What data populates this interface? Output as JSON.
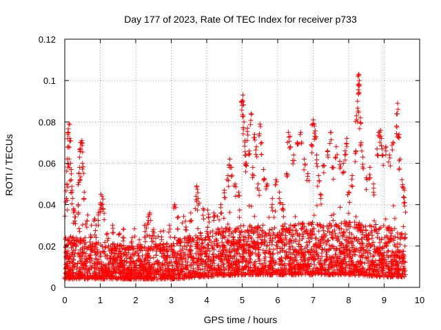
{
  "chart_data": {
    "type": "scatter",
    "title": "Day 177 of 2023, Rate Of TEC Index for receiver p733",
    "xlabel": "GPS time / hours",
    "ylabel": "ROTI / TECUs",
    "xlim": [
      0,
      10
    ],
    "ylim": [
      0,
      0.12
    ],
    "grid": true,
    "marker": "+",
    "x_ticks": [
      0,
      1,
      2,
      3,
      4,
      5,
      6,
      7,
      8,
      9,
      10
    ],
    "y_ticks": [
      0,
      0.02,
      0.04,
      0.06,
      0.08,
      0.1,
      0.12
    ],
    "x_tick_labels": [
      "0",
      "1",
      "2",
      "3",
      "4",
      "5",
      "6",
      "7",
      "8",
      "9",
      "10"
    ],
    "y_tick_labels": [
      "0",
      "0.02",
      "0.04",
      "0.06",
      "0.08",
      "0.1",
      "0.12"
    ],
    "series": [
      {
        "name": "ROTI",
        "color": "#ff0000",
        "x_range": [
          0.0,
          9.6
        ],
        "baseline_profile": [
          {
            "x": 0.0,
            "low": 0.004,
            "high": 0.025
          },
          {
            "x": 1.0,
            "low": 0.004,
            "high": 0.022
          },
          {
            "x": 2.0,
            "low": 0.004,
            "high": 0.02
          },
          {
            "x": 3.0,
            "low": 0.004,
            "high": 0.022
          },
          {
            "x": 4.0,
            "low": 0.005,
            "high": 0.028
          },
          {
            "x": 5.0,
            "low": 0.006,
            "high": 0.03
          },
          {
            "x": 6.0,
            "low": 0.006,
            "high": 0.03
          },
          {
            "x": 7.0,
            "low": 0.006,
            "high": 0.032
          },
          {
            "x": 8.0,
            "low": 0.006,
            "high": 0.032
          },
          {
            "x": 9.0,
            "low": 0.005,
            "high": 0.03
          },
          {
            "x": 9.6,
            "low": 0.005,
            "high": 0.028
          }
        ],
        "points": [
          [
            0.05,
            0.043
          ],
          [
            0.06,
            0.05
          ],
          [
            0.08,
            0.06
          ],
          [
            0.1,
            0.068
          ],
          [
            0.1,
            0.075
          ],
          [
            0.12,
            0.079
          ],
          [
            0.14,
            0.072
          ],
          [
            0.16,
            0.06
          ],
          [
            0.18,
            0.052
          ],
          [
            0.2,
            0.046
          ],
          [
            0.25,
            0.038
          ],
          [
            0.3,
            0.034
          ],
          [
            0.38,
            0.04
          ],
          [
            0.4,
            0.055
          ],
          [
            0.42,
            0.058
          ],
          [
            0.44,
            0.067
          ],
          [
            0.46,
            0.07
          ],
          [
            0.48,
            0.071
          ],
          [
            0.5,
            0.06
          ],
          [
            0.55,
            0.046
          ],
          [
            0.65,
            0.035
          ],
          [
            0.75,
            0.03
          ],
          [
            0.85,
            0.033
          ],
          [
            0.95,
            0.036
          ],
          [
            1.0,
            0.04
          ],
          [
            1.02,
            0.045
          ],
          [
            1.05,
            0.044
          ],
          [
            1.08,
            0.038
          ],
          [
            1.2,
            0.026
          ],
          [
            1.35,
            0.03
          ],
          [
            1.55,
            0.026
          ],
          [
            1.65,
            0.028
          ],
          [
            1.9,
            0.024
          ],
          [
            2.1,
            0.023
          ],
          [
            2.25,
            0.03
          ],
          [
            2.35,
            0.034
          ],
          [
            2.4,
            0.036
          ],
          [
            2.5,
            0.028
          ],
          [
            2.7,
            0.027
          ],
          [
            2.95,
            0.03
          ],
          [
            3.1,
            0.04
          ],
          [
            3.2,
            0.034
          ],
          [
            3.4,
            0.032
          ],
          [
            3.55,
            0.036
          ],
          [
            3.7,
            0.044
          ],
          [
            3.72,
            0.049
          ],
          [
            3.76,
            0.043
          ],
          [
            3.9,
            0.038
          ],
          [
            4.05,
            0.034
          ],
          [
            4.2,
            0.036
          ],
          [
            4.4,
            0.04
          ],
          [
            4.5,
            0.047
          ],
          [
            4.6,
            0.054
          ],
          [
            4.65,
            0.062
          ],
          [
            4.7,
            0.058
          ],
          [
            4.8,
            0.05
          ],
          [
            4.9,
            0.046
          ],
          [
            4.98,
            0.09
          ],
          [
            5.0,
            0.088
          ],
          [
            5.02,
            0.093
          ],
          [
            5.05,
            0.08
          ],
          [
            5.08,
            0.071
          ],
          [
            5.1,
            0.064
          ],
          [
            5.12,
            0.06
          ],
          [
            5.15,
            0.077
          ],
          [
            5.2,
            0.066
          ],
          [
            5.25,
            0.084
          ],
          [
            5.3,
            0.058
          ],
          [
            5.35,
            0.074
          ],
          [
            5.4,
            0.068
          ],
          [
            5.45,
            0.05
          ],
          [
            5.5,
            0.079
          ],
          [
            5.55,
            0.07
          ],
          [
            5.6,
            0.057
          ],
          [
            5.7,
            0.05
          ],
          [
            5.85,
            0.043
          ],
          [
            5.95,
            0.052
          ],
          [
            6.05,
            0.046
          ],
          [
            6.15,
            0.04
          ],
          [
            6.25,
            0.055
          ],
          [
            6.3,
            0.075
          ],
          [
            6.35,
            0.073
          ],
          [
            6.45,
            0.064
          ],
          [
            6.55,
            0.07
          ],
          [
            6.65,
            0.075
          ],
          [
            6.75,
            0.062
          ],
          [
            6.85,
            0.055
          ],
          [
            6.95,
            0.069
          ],
          [
            7.0,
            0.081
          ],
          [
            7.03,
            0.079
          ],
          [
            7.05,
            0.073
          ],
          [
            7.1,
            0.064
          ],
          [
            7.15,
            0.054
          ],
          [
            7.2,
            0.045
          ],
          [
            7.3,
            0.059
          ],
          [
            7.4,
            0.066
          ],
          [
            7.5,
            0.075
          ],
          [
            7.55,
            0.058
          ],
          [
            7.65,
            0.068
          ],
          [
            7.75,
            0.061
          ],
          [
            7.85,
            0.06
          ],
          [
            7.9,
            0.066
          ],
          [
            7.95,
            0.072
          ],
          [
            8.0,
            0.046
          ],
          [
            8.1,
            0.054
          ],
          [
            8.2,
            0.066
          ],
          [
            8.22,
            0.083
          ],
          [
            8.25,
            0.09
          ],
          [
            8.27,
            0.098
          ],
          [
            8.28,
            0.103
          ],
          [
            8.3,
            0.1
          ],
          [
            8.33,
            0.082
          ],
          [
            8.35,
            0.07
          ],
          [
            8.4,
            0.063
          ],
          [
            8.5,
            0.053
          ],
          [
            8.6,
            0.058
          ],
          [
            8.7,
            0.05
          ],
          [
            8.8,
            0.067
          ],
          [
            8.85,
            0.075
          ],
          [
            8.9,
            0.076
          ],
          [
            8.92,
            0.072
          ],
          [
            8.95,
            0.064
          ],
          [
            9.05,
            0.068
          ],
          [
            9.15,
            0.064
          ],
          [
            9.25,
            0.07
          ],
          [
            9.35,
            0.078
          ],
          [
            9.38,
            0.089
          ],
          [
            9.42,
            0.074
          ],
          [
            9.45,
            0.062
          ],
          [
            9.5,
            0.052
          ],
          [
            9.55,
            0.048
          ],
          [
            9.58,
            0.041
          ]
        ]
      }
    ]
  }
}
